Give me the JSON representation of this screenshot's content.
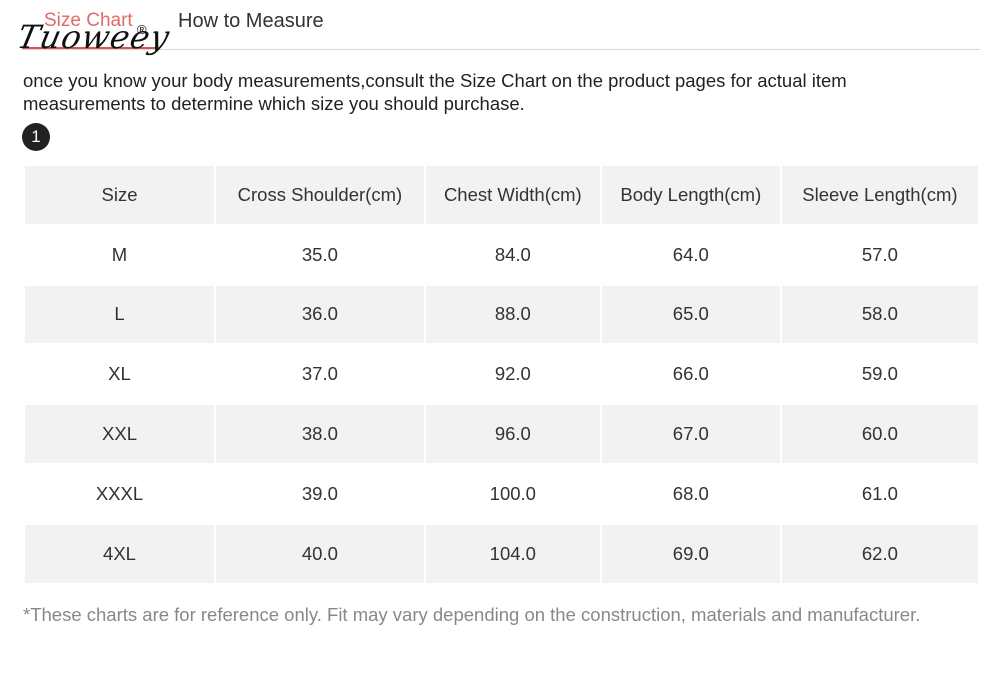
{
  "tabs": {
    "active_label": "Size Chart",
    "other_label": "How to Measure"
  },
  "logo": {
    "text": "Tuoweey",
    "registered": "®"
  },
  "intro_text": "once you know your body measurements,consult the Size Chart on the product pages for actual item measurements to determine which size you should purchase.",
  "step_number": "1",
  "table": {
    "headers": [
      "Size",
      "Cross Shoulder(cm)",
      "Chest Width(cm)",
      "Body Length(cm)",
      "Sleeve Length(cm)"
    ],
    "rows": [
      [
        "M",
        "35.0",
        "84.0",
        "64.0",
        "57.0"
      ],
      [
        "L",
        "36.0",
        "88.0",
        "65.0",
        "58.0"
      ],
      [
        "XL",
        "37.0",
        "92.0",
        "66.0",
        "59.0"
      ],
      [
        "XXL",
        "38.0",
        "96.0",
        "67.0",
        "60.0"
      ],
      [
        "XXXL",
        "39.0",
        "100.0",
        "68.0",
        "61.0"
      ],
      [
        "4XL",
        "40.0",
        "104.0",
        "69.0",
        "62.0"
      ]
    ]
  },
  "footnote": "*These charts are for reference only. Fit may vary depending on the construction, materials and manufacturer.",
  "colors": {
    "accent": "#d9534f",
    "alt_row": "#f2f2f2",
    "text": "#333333"
  }
}
